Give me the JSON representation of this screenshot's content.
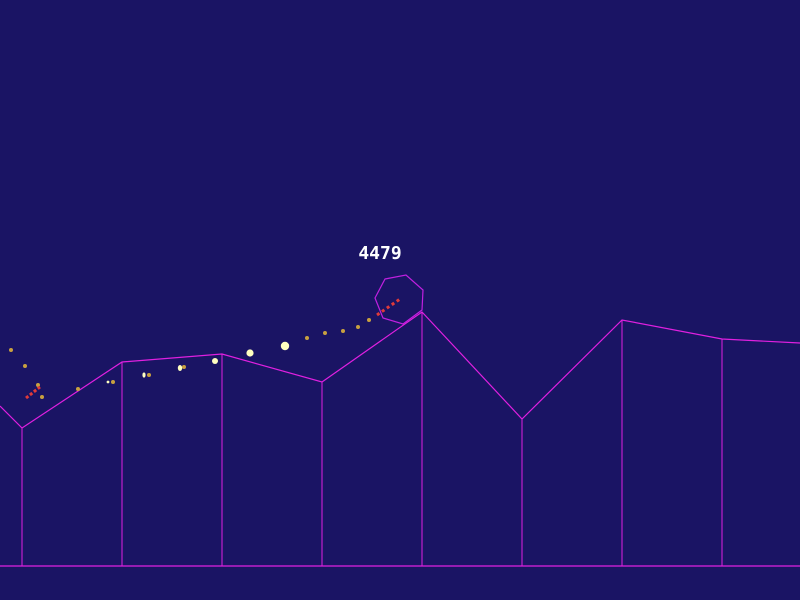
{
  "score": "4479",
  "colors": {
    "background": "#1a1464",
    "terrain": "#e020e0",
    "player": "#c020e0",
    "trail_near": "#e03a3a",
    "trail_far": "#c8a040",
    "spark": "#ffffc0",
    "text": "#ffffff"
  }
}
